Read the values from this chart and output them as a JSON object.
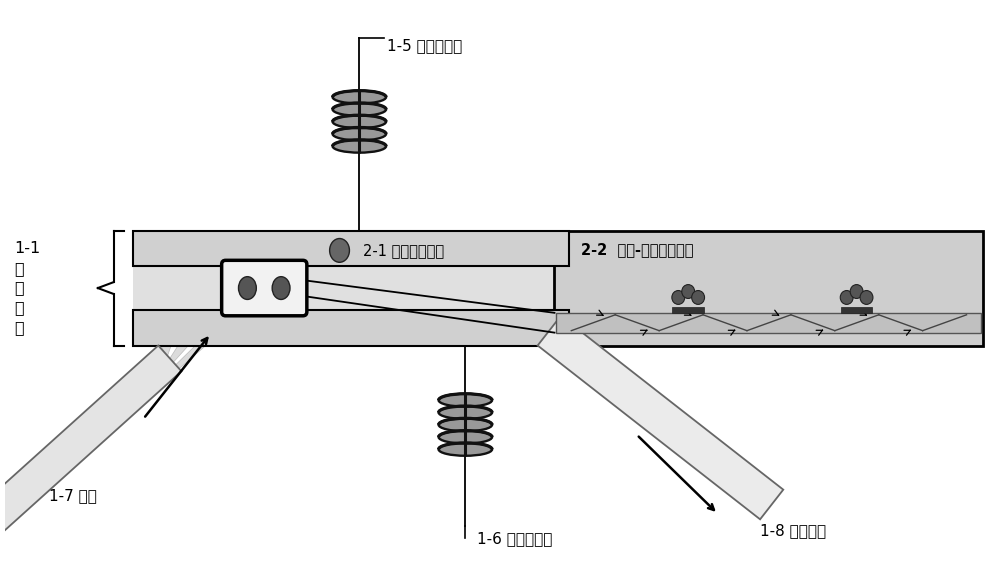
{
  "bg_color": "#ffffff",
  "label_11": "1-1\n检\n测\n芯\n片",
  "label_15": "1-5 上电磁线圈",
  "label_16": "1-6 下电磁线圈",
  "label_17": "1-7 光源",
  "label_18": "1-8 检测装置",
  "label_21": "2-1 复合磁微粒子",
  "label_22": "2-2  抗体-复合磁微粒子",
  "chip_fill": "#d0d0d0",
  "chip_border": "#000000",
  "channel_fill": "#e0e0e0",
  "tir_fill": "#d8d8d8",
  "tir_border": "#000000",
  "coil_ring": "#888888",
  "coil_edge": "#111111",
  "particle_fill": "#555555",
  "particle_edge": "#222222",
  "beam_fill": "#d0d0d0",
  "beam_edge": "#999999",
  "device_fill": "#e8e8e8",
  "device_edge": "#666666",
  "black": "#000000"
}
